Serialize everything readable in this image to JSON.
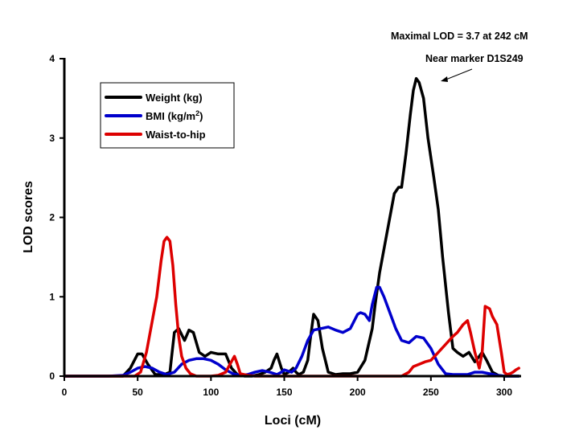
{
  "chart_data": {
    "type": "line",
    "title": "",
    "xlabel": "Loci (cM)",
    "ylabel": "LOD scores",
    "xlim": [
      0,
      310
    ],
    "ylim": [
      0,
      4
    ],
    "xticks": [
      0,
      50,
      100,
      150,
      200,
      250,
      300
    ],
    "yticks": [
      0,
      1,
      2,
      3,
      4
    ],
    "grid": false,
    "legend_position": "top-left",
    "annotations": {
      "max_lod": "Maximal LOD = 3.7 at 242 cM",
      "marker": "Near marker D1S249"
    },
    "series": [
      {
        "name": "Weight (kg)",
        "color": "#000000",
        "x": [
          0,
          40,
          45,
          50,
          53,
          57,
          62,
          68,
          72,
          75,
          78,
          82,
          85,
          88,
          92,
          96,
          100,
          105,
          110,
          114,
          118,
          123,
          128,
          133,
          137,
          141,
          143,
          145,
          148,
          150,
          153,
          156,
          158,
          160,
          163,
          166,
          168,
          170,
          173,
          176,
          180,
          185,
          190,
          195,
          200,
          205,
          210,
          212,
          215,
          220,
          225,
          228,
          230,
          233,
          236,
          238,
          240,
          242,
          245,
          248,
          252,
          255,
          258,
          262,
          265,
          268,
          272,
          276,
          280,
          283,
          285,
          288,
          292,
          296,
          300,
          305,
          310
        ],
        "y": [
          0,
          0,
          0.1,
          0.28,
          0.28,
          0.15,
          0.02,
          0.02,
          0.05,
          0.55,
          0.6,
          0.45,
          0.58,
          0.55,
          0.3,
          0.25,
          0.3,
          0.28,
          0.28,
          0.1,
          0.02,
          0,
          0,
          0.02,
          0.05,
          0.1,
          0.2,
          0.28,
          0.1,
          0.02,
          0.05,
          0.1,
          0.05,
          0.02,
          0.05,
          0.2,
          0.5,
          0.78,
          0.7,
          0.35,
          0.05,
          0.02,
          0.03,
          0.03,
          0.05,
          0.2,
          0.6,
          0.9,
          1.3,
          1.8,
          2.3,
          2.38,
          2.38,
          2.8,
          3.3,
          3.6,
          3.75,
          3.7,
          3.5,
          3.0,
          2.5,
          2.1,
          1.5,
          0.8,
          0.35,
          0.3,
          0.25,
          0.3,
          0.18,
          0.25,
          0.3,
          0.2,
          0.05,
          0.01,
          0,
          0,
          0
        ]
      },
      {
        "name": "BMI (kg/m2)",
        "color": "#0000cc",
        "x": [
          0,
          30,
          40,
          45,
          50,
          55,
          60,
          65,
          70,
          75,
          80,
          85,
          90,
          95,
          100,
          105,
          110,
          115,
          120,
          125,
          130,
          135,
          140,
          145,
          148,
          150,
          155,
          158,
          162,
          166,
          170,
          175,
          180,
          185,
          190,
          195,
          200,
          202,
          205,
          208,
          210,
          213,
          215,
          218,
          222,
          226,
          230,
          235,
          240,
          245,
          250,
          255,
          260,
          265,
          270,
          275,
          280,
          285,
          290,
          295,
          300,
          305,
          310
        ],
        "y": [
          0,
          0,
          0.01,
          0.05,
          0.1,
          0.12,
          0.1,
          0.05,
          0.02,
          0.05,
          0.15,
          0.2,
          0.22,
          0.22,
          0.2,
          0.15,
          0.08,
          0.03,
          0.01,
          0.02,
          0.05,
          0.07,
          0.05,
          0.02,
          0.05,
          0.08,
          0.05,
          0.1,
          0.25,
          0.45,
          0.58,
          0.6,
          0.62,
          0.58,
          0.55,
          0.6,
          0.78,
          0.8,
          0.78,
          0.7,
          0.9,
          1.12,
          1.12,
          1.0,
          0.8,
          0.6,
          0.45,
          0.42,
          0.5,
          0.48,
          0.35,
          0.15,
          0.03,
          0.02,
          0.02,
          0.02,
          0.05,
          0.05,
          0.03,
          0.01,
          0,
          0,
          0
        ]
      },
      {
        "name": "Waist-to-hip",
        "color": "#dd0000",
        "x": [
          0,
          40,
          48,
          52,
          56,
          60,
          63,
          66,
          68,
          70,
          72,
          74,
          76,
          78,
          80,
          83,
          86,
          90,
          95,
          100,
          105,
          110,
          113,
          116,
          118,
          120,
          125,
          130,
          200,
          230,
          235,
          238,
          242,
          246,
          250,
          255,
          260,
          265,
          268,
          272,
          275,
          277,
          280,
          283,
          285,
          287,
          290,
          292,
          295,
          298,
          300,
          302,
          304,
          306,
          308,
          310
        ],
        "y": [
          0,
          0,
          0,
          0.05,
          0.3,
          0.7,
          1.0,
          1.45,
          1.7,
          1.75,
          1.7,
          1.4,
          0.9,
          0.5,
          0.25,
          0.1,
          0.03,
          0,
          0,
          0,
          0.01,
          0.05,
          0.15,
          0.25,
          0.15,
          0.03,
          0.01,
          0,
          0,
          0,
          0.05,
          0.12,
          0.15,
          0.18,
          0.2,
          0.3,
          0.4,
          0.5,
          0.55,
          0.65,
          0.7,
          0.55,
          0.3,
          0.1,
          0.3,
          0.88,
          0.85,
          0.75,
          0.65,
          0.3,
          0.05,
          0.02,
          0.03,
          0.05,
          0.08,
          0.1
        ]
      }
    ]
  }
}
